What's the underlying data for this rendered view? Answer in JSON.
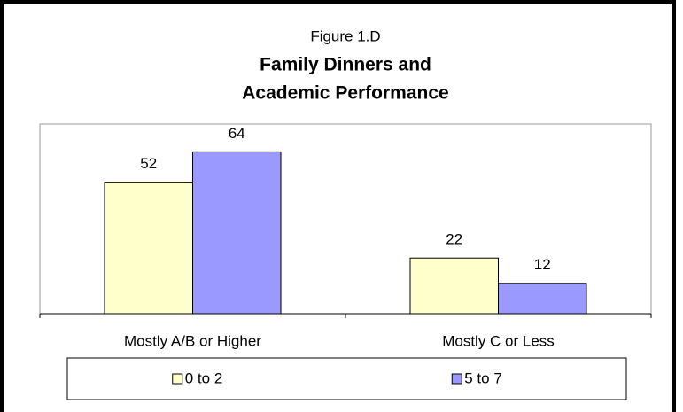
{
  "chart_data": {
    "type": "bar",
    "title": "Figure 1.D",
    "subtitle": [
      "Family Dinners and",
      "Academic Performance"
    ],
    "categories": [
      "Mostly A/B or Higher",
      "Mostly C or Less"
    ],
    "series": [
      {
        "name": "0 to 2",
        "color": "#ffffcc",
        "values": [
          52,
          22
        ]
      },
      {
        "name": "5 to 7",
        "color": "#9999ff",
        "values": [
          64,
          12
        ]
      }
    ],
    "ylim": [
      0,
      75
    ],
    "legend": "bottom"
  }
}
